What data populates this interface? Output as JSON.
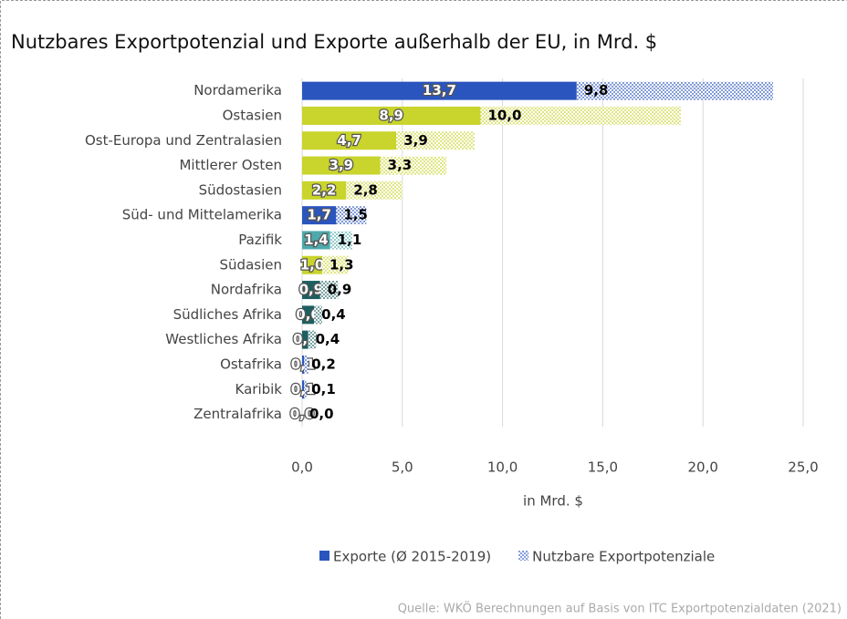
{
  "chart_data": {
    "type": "bar",
    "orientation": "horizontal",
    "stacked": true,
    "title": "Nutzbares Exportpotenzial und Exporte außerhalb der EU, in Mrd. $",
    "x_label": "in Mrd. $",
    "source": "Quelle: WKÖ Berechnungen auf Basis von ITC Exportpotenzialdaten (2021)",
    "categories": [
      "Nordamerika",
      "Ostasien",
      "Ost-Europa und Zentralasien",
      "Mittlerer Osten",
      "Südostasien",
      "Süd- und Mittelamerika",
      "Pazifik",
      "Südasien",
      "Nordafrika",
      "Südliches Afrika",
      "Westliches Afrika",
      "Ostafrika",
      "Karibik",
      "Zentralafrika"
    ],
    "colors": [
      "#2b55be",
      "#c9d42c",
      "#c9d42c",
      "#c9d42c",
      "#c9d42c",
      "#2b55be",
      "#4fa9ab",
      "#c9d42c",
      "#1c5f60",
      "#1c5f60",
      "#1c5f60",
      "#2b55be",
      "#2b55be",
      "#2b55be"
    ],
    "series": [
      {
        "name": "Exporte (Ø 2015-2019)",
        "color": "#2b55be",
        "values": [
          13.7,
          8.9,
          4.7,
          3.9,
          2.2,
          1.7,
          1.4,
          1.0,
          0.9,
          0.6,
          0.3,
          0.1,
          0.1,
          0.0
        ],
        "value_labels": [
          "13,7",
          "8,9",
          "4,7",
          "3,9",
          "2,2",
          "1,7",
          "1,4",
          "1,0",
          "0,9",
          "0,6",
          "0,3",
          "0,1",
          "0,1",
          "0,0"
        ]
      },
      {
        "name": "Nutzbare Exportpotenziale",
        "color": "#2b55be",
        "pattern": "dotted",
        "values": [
          9.8,
          10.0,
          3.9,
          3.3,
          2.8,
          1.5,
          1.1,
          1.3,
          0.9,
          0.4,
          0.4,
          0.2,
          0.1,
          0.0
        ],
        "value_labels": [
          "9,8",
          "10,0",
          "3,9",
          "3,3",
          "2,8",
          "1,5",
          "1,1",
          "1,3",
          "0,9",
          "0,4",
          "0,4",
          "0,2",
          "0,1",
          "0,0"
        ]
      }
    ],
    "xlim": [
      0,
      25
    ],
    "xticks": [
      {
        "value": 0,
        "label": "0,0"
      },
      {
        "value": 5,
        "label": "5,0"
      },
      {
        "value": 10,
        "label": "10,0"
      },
      {
        "value": 15,
        "label": "15,0"
      },
      {
        "value": 20,
        "label": "20,0"
      },
      {
        "value": 25,
        "label": "25,0"
      }
    ],
    "grid": true,
    "legend": "bottom"
  }
}
